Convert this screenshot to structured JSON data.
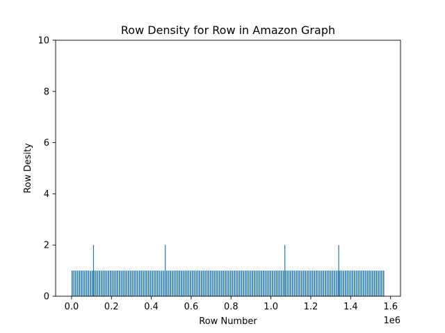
{
  "chart_data": {
    "type": "bar",
    "title": "Row Density for Row in Amazon Graph",
    "xlabel": "Row Number",
    "ylabel": "Row Desity",
    "x_offset_text": "1e6",
    "xlim": [
      -80000,
      1650000
    ],
    "ylim": [
      0,
      10
    ],
    "x_ticks": [
      0,
      0.2,
      0.4,
      0.6,
      0.8,
      1.0,
      1.2,
      1.4,
      1.6
    ],
    "x_tick_labels": [
      "0.0",
      "0.2",
      "0.4",
      "0.6",
      "0.8",
      "1.0",
      "1.2",
      "1.4",
      "1.6"
    ],
    "y_ticks": [
      0,
      2,
      4,
      6,
      8,
      10
    ],
    "y_tick_labels": [
      "0",
      "2",
      "4",
      "6",
      "8",
      "10"
    ],
    "x_scale": 1000000,
    "bar_color": "#1f77b4",
    "grid": false,
    "series": [
      {
        "baseline_value": 1,
        "baseline_x_range": [
          0,
          1570000
        ],
        "points": [
          {
            "x": 110000,
            "y": 2
          },
          {
            "x": 470000,
            "y": 2
          },
          {
            "x": 1070000,
            "y": 2
          },
          {
            "x": 1340000,
            "y": 2
          }
        ]
      }
    ]
  }
}
